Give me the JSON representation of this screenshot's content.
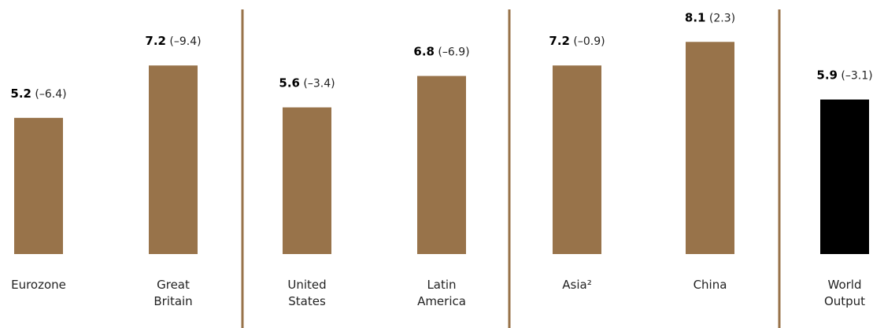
{
  "chart_data": {
    "type": "bar",
    "categories": [
      [
        "Eurozone"
      ],
      [
        "Great",
        "Britain"
      ],
      [
        "United",
        "States"
      ],
      [
        "Latin",
        "America"
      ],
      [
        "Asia²"
      ],
      [
        "China"
      ],
      [
        "World",
        "Output"
      ]
    ],
    "values": [
      5.2,
      7.2,
      5.6,
      6.8,
      7.2,
      8.1,
      5.9
    ],
    "value_labels": [
      "5.2",
      "7.2",
      "5.6",
      "6.8",
      "7.2",
      "8.1",
      "5.9"
    ],
    "paren_labels": [
      "(–6.4)",
      "(–9.4)",
      "(–3.4)",
      "(–6.9)",
      "(–0.9)",
      "(2.3)",
      "(–3.1)"
    ],
    "bar_colors": [
      "#98734a",
      "#98734a",
      "#98734a",
      "#98734a",
      "#98734a",
      "#98734a",
      "#000000"
    ],
    "group_separators_after_index": [
      1,
      3,
      5
    ],
    "separator_color": "#98734a",
    "ylim": [
      0,
      9.2
    ],
    "grid": false,
    "legend": "none"
  }
}
